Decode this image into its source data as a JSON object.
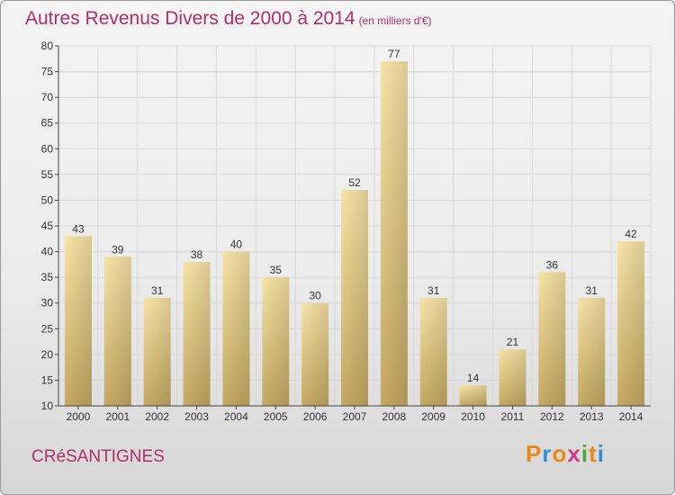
{
  "title": "Autres Revenus Divers de 2000 à 2014",
  "subtitle": "(en milliers d'€)",
  "commune": "CRéSANTIGNES",
  "brand": {
    "letters": [
      "P",
      "r",
      "o",
      "x",
      "i",
      "t",
      "i"
    ],
    "colors": [
      "#e8891a",
      "#2f8fd0",
      "#e8891a",
      "#d23a8a",
      "#4fa83a",
      "#e8891a",
      "#2f8fd0"
    ]
  },
  "colors": {
    "accent": "#b0306b",
    "bar_light": "#f6e3a4",
    "bar_dark": "#c2a55e",
    "grid": "#d7d7d7"
  },
  "chart_data": {
    "type": "bar",
    "categories": [
      "2000",
      "2001",
      "2002",
      "2003",
      "2004",
      "2005",
      "2006",
      "2007",
      "2008",
      "2009",
      "2010",
      "2011",
      "2012",
      "2013",
      "2014"
    ],
    "values": [
      43,
      39,
      31,
      38,
      40,
      35,
      30,
      52,
      77,
      31,
      14,
      21,
      36,
      31,
      42
    ],
    "ylim": [
      10,
      80
    ],
    "yticks": [
      10,
      15,
      20,
      25,
      30,
      35,
      40,
      45,
      50,
      55,
      60,
      65,
      70,
      75,
      80
    ],
    "grid": true,
    "title": "Autres Revenus Divers de 2000 à 2014",
    "xlabel": "",
    "ylabel": ""
  }
}
